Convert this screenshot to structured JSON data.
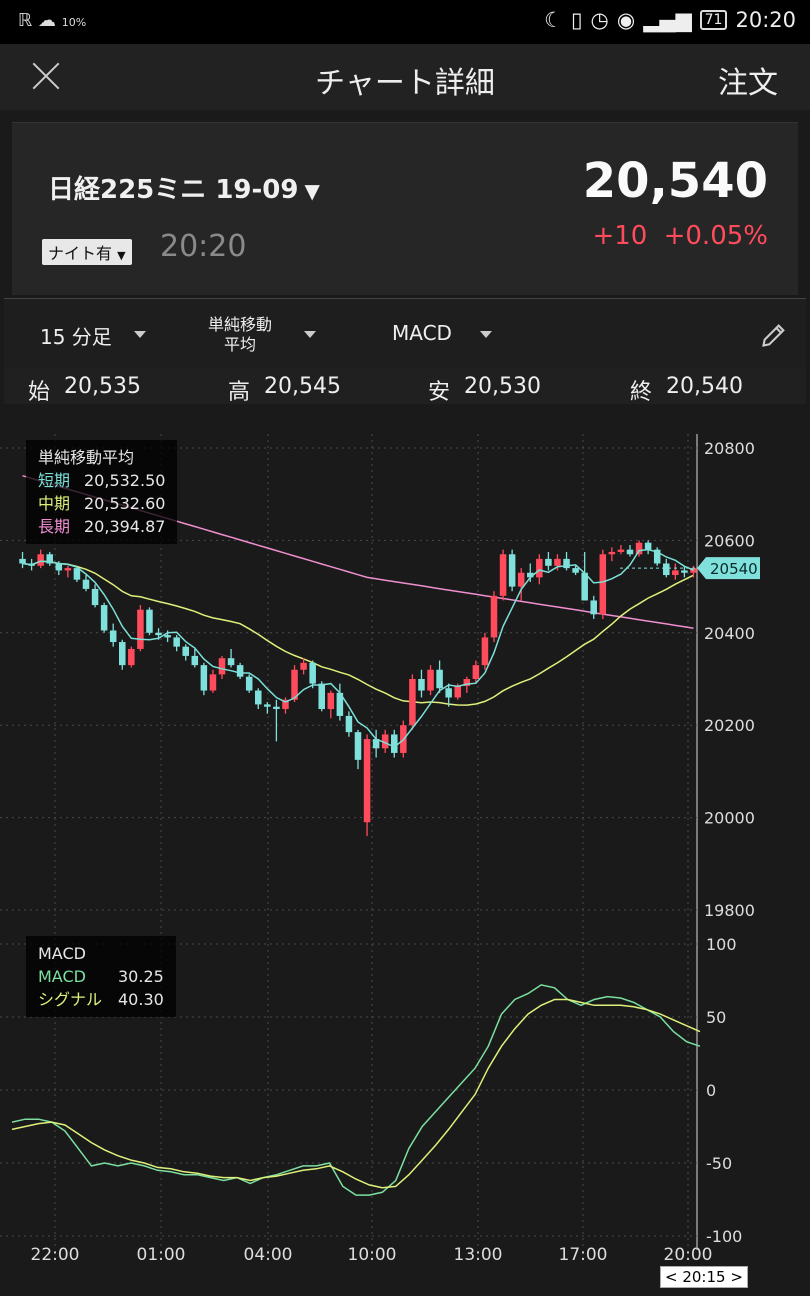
{
  "status_bar": {
    "left": "10%",
    "battery": "71",
    "time": "20:20"
  },
  "header": {
    "title": "チャート詳細",
    "order": "注文"
  },
  "quote": {
    "instrument": "日経225ミニ 19-09",
    "night_badge": "ナイト有",
    "time": "20:20",
    "price": "20,540",
    "change": "+10",
    "change_pct": "+0.05%"
  },
  "selectors": {
    "period": "15 分足",
    "indicator_line1": "単純移動",
    "indicator_line2": "平均",
    "oscillator": "MACD"
  },
  "ohlc": {
    "open_label": "始",
    "open": "20,535",
    "high_label": "高",
    "high": "20,545",
    "low_label": "安",
    "low": "20,530",
    "close_label": "終",
    "close": "20,540"
  },
  "sma_legend": {
    "title": "単純移動平均",
    "rows": [
      {
        "label": "短期",
        "value": "20,532.50",
        "color": "#7be0d8"
      },
      {
        "label": "中期",
        "value": "20,532.60",
        "color": "#dff07a"
      },
      {
        "label": "長期",
        "value": "20,394.87",
        "color": "#f08fd0"
      }
    ]
  },
  "macd_legend": {
    "title": "MACD",
    "rows": [
      {
        "label": "MACD",
        "value": "30.25",
        "color": "#7be0a0"
      },
      {
        "label": "シグナル",
        "value": "40.30",
        "color": "#dff07a"
      }
    ]
  },
  "colors": {
    "up": "#ff4b5c",
    "down": "#7fe0dc",
    "short": "#7be0d8",
    "mid": "#dff07a",
    "long": "#f08fd0",
    "macd": "#7be0a0",
    "signal": "#dff07a"
  },
  "chart_data": [
    {
      "type": "candlestick",
      "price_ylim": [
        19800,
        20800
      ],
      "y_ticks": [
        20800,
        20600,
        20400,
        20200,
        20000,
        19800
      ],
      "last_price_label": "20540",
      "x_tick_labels": [
        "22:00",
        "01:00",
        "04:00",
        "10:00",
        "13:00",
        "17:00",
        "20:00"
      ],
      "candles": [
        [
          20560,
          20575,
          20540,
          20550
        ],
        [
          20550,
          20560,
          20535,
          20545
        ],
        [
          20545,
          20580,
          20540,
          20570
        ],
        [
          20570,
          20575,
          20545,
          20550
        ],
        [
          20550,
          20555,
          20525,
          20535
        ],
        [
          20535,
          20545,
          20520,
          20540
        ],
        [
          20540,
          20545,
          20510,
          20515
        ],
        [
          20515,
          20525,
          20490,
          20495
        ],
        [
          20495,
          20505,
          20455,
          20460
        ],
        [
          20460,
          20465,
          20400,
          20405
        ],
        [
          20405,
          20420,
          20370,
          20380
        ],
        [
          20380,
          20385,
          20320,
          20330
        ],
        [
          20330,
          20370,
          20325,
          20365
        ],
        [
          20365,
          20460,
          20360,
          20450
        ],
        [
          20450,
          20455,
          20395,
          20400
        ],
        [
          20400,
          20410,
          20385,
          20395
        ],
        [
          20395,
          20405,
          20380,
          20390
        ],
        [
          20390,
          20395,
          20360,
          20370
        ],
        [
          20370,
          20375,
          20340,
          20350
        ],
        [
          20350,
          20365,
          20325,
          20330
        ],
        [
          20330,
          20335,
          20265,
          20275
        ],
        [
          20275,
          20320,
          20270,
          20310
        ],
        [
          20310,
          20350,
          20300,
          20345
        ],
        [
          20345,
          20365,
          20325,
          20330
        ],
        [
          20330,
          20335,
          20300,
          20305
        ],
        [
          20305,
          20310,
          20270,
          20275
        ],
        [
          20275,
          20280,
          20235,
          20245
        ],
        [
          20245,
          20250,
          20225,
          20240
        ],
        [
          20240,
          20255,
          20165,
          20235
        ],
        [
          20235,
          20260,
          20225,
          20255
        ],
        [
          20255,
          20330,
          20250,
          20320
        ],
        [
          20320,
          20345,
          20310,
          20335
        ],
        [
          20335,
          20340,
          20280,
          20290
        ],
        [
          20290,
          20295,
          20230,
          20235
        ],
        [
          20235,
          20275,
          20215,
          20270
        ],
        [
          20270,
          20290,
          20210,
          20220
        ],
        [
          20220,
          20230,
          20175,
          20185
        ],
        [
          20185,
          20190,
          20105,
          20125
        ],
        [
          19990,
          20180,
          19960,
          20170
        ],
        [
          20170,
          20190,
          20130,
          20150
        ],
        [
          20150,
          20190,
          20140,
          20180
        ],
        [
          20180,
          20190,
          20130,
          20140
        ],
        [
          20140,
          20210,
          20130,
          20200
        ],
        [
          20200,
          20310,
          20190,
          20300
        ],
        [
          20300,
          20320,
          20260,
          20275
        ],
        [
          20275,
          20330,
          20265,
          20320
        ],
        [
          20320,
          20340,
          20270,
          20280
        ],
        [
          20280,
          20290,
          20240,
          20260
        ],
        [
          20260,
          20290,
          20255,
          20285
        ],
        [
          20285,
          20305,
          20270,
          20300
        ],
        [
          20300,
          20340,
          20290,
          20330
        ],
        [
          20330,
          20400,
          20320,
          20390
        ],
        [
          20390,
          20490,
          20380,
          20480
        ],
        [
          20480,
          20580,
          20470,
          20570
        ],
        [
          20570,
          20580,
          20490,
          20500
        ],
        [
          20500,
          20540,
          20470,
          20530
        ],
        [
          20530,
          20550,
          20510,
          20520
        ],
        [
          20520,
          20570,
          20505,
          20560
        ],
        [
          20560,
          20575,
          20535,
          20545
        ],
        [
          20545,
          20570,
          20535,
          20560
        ],
        [
          20560,
          20575,
          20535,
          20540
        ],
        [
          20540,
          20545,
          20525,
          20530
        ],
        [
          20530,
          20575,
          20470,
          20470
        ],
        [
          20470,
          20480,
          20430,
          20440
        ],
        [
          20440,
          20580,
          20430,
          20570
        ],
        [
          20570,
          20585,
          20555,
          20575
        ],
        [
          20575,
          20590,
          20570,
          20580
        ],
        [
          20580,
          20590,
          20565,
          20570
        ],
        [
          20570,
          20600,
          20565,
          20595
        ],
        [
          20595,
          20600,
          20570,
          20580
        ],
        [
          20580,
          20585,
          20545,
          20550
        ],
        [
          20550,
          20560,
          20520,
          20525
        ],
        [
          20525,
          20550,
          20515,
          20535
        ],
        [
          20535,
          20545,
          20520,
          20530
        ],
        [
          20530,
          20545,
          20520,
          20540
        ]
      ]
    },
    {
      "type": "line",
      "ylim": [
        -100,
        100
      ],
      "y_ticks": [
        100,
        50,
        0,
        -50,
        -100
      ],
      "series": [
        {
          "name": "MACD",
          "values": [
            -22,
            -20,
            -20,
            -22,
            -28,
            -40,
            -52,
            -50,
            -52,
            -50,
            -52,
            -55,
            -56,
            -58,
            -58,
            -60,
            -62,
            -60,
            -64,
            -60,
            -58,
            -55,
            -52,
            -52,
            -50,
            -66,
            -72,
            -72,
            -70,
            -62,
            -40,
            -25,
            -15,
            -5,
            5,
            15,
            30,
            52,
            62,
            66,
            72,
            70,
            62,
            58,
            62,
            64,
            63,
            60,
            55,
            50,
            40,
            33,
            30
          ]
        },
        {
          "name": "シグナル",
          "values": [
            -27,
            -25,
            -23,
            -22,
            -24,
            -30,
            -36,
            -41,
            -45,
            -48,
            -50,
            -53,
            -54,
            -56,
            -57,
            -59,
            -60,
            -60,
            -62,
            -60,
            -59,
            -57,
            -55,
            -54,
            -52,
            -56,
            -61,
            -65,
            -67,
            -66,
            -58,
            -48,
            -38,
            -27,
            -15,
            -3,
            15,
            30,
            42,
            52,
            58,
            62,
            62,
            60,
            58,
            58,
            58,
            57,
            55,
            52,
            48,
            44,
            40
          ]
        }
      ]
    }
  ]
}
